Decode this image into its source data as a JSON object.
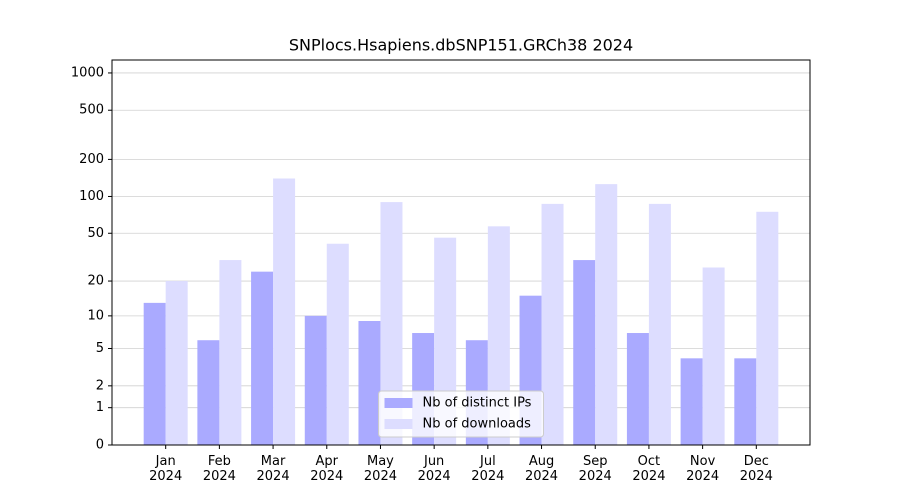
{
  "chart_data": {
    "type": "bar",
    "title": "SNPlocs.Hsapiens.dbSNP151.GRCh38 2024",
    "categories": [
      "Jan\n2024",
      "Feb\n2024",
      "Mar\n2024",
      "Apr\n2024",
      "May\n2024",
      "Jun\n2024",
      "Jul\n2024",
      "Aug\n2024",
      "Sep\n2024",
      "Oct\n2024",
      "Nov\n2024",
      "Dec\n2024"
    ],
    "series": [
      {
        "name": "Nb of distinct IPs",
        "color": "#aaaaff",
        "values": [
          13,
          6,
          24,
          10,
          9,
          7,
          6,
          15,
          30,
          7,
          4,
          4
        ]
      },
      {
        "name": "Nb of downloads",
        "color": "#ddddff",
        "values": [
          20,
          30,
          140,
          41,
          90,
          46,
          57,
          87,
          126,
          87,
          26,
          75
        ]
      }
    ],
    "ylim": [
      0,
      1272
    ],
    "yticks": [
      0,
      1,
      2,
      5,
      10,
      20,
      50,
      100,
      200,
      500,
      1000
    ],
    "yscale": "log1p",
    "grid": true,
    "legend": "lower center"
  }
}
